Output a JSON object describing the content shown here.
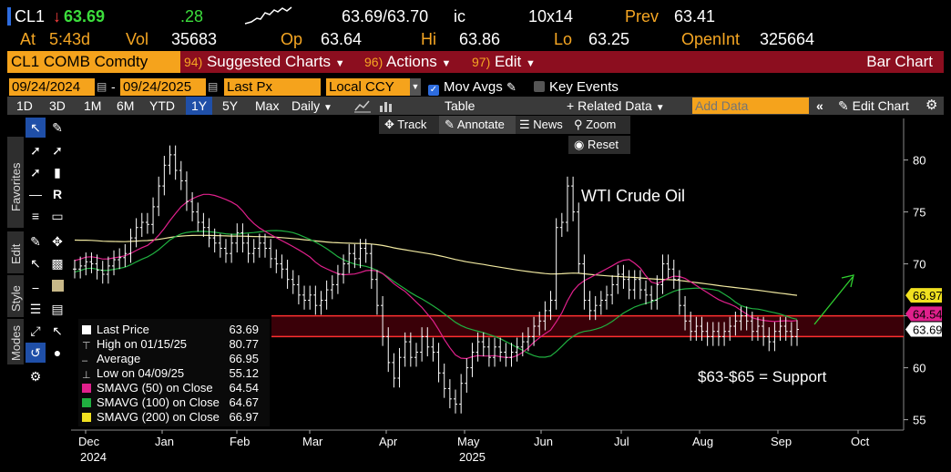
{
  "header": {
    "ticker": "CL1",
    "arrow": "↓",
    "last": "63.69",
    "change": ".28",
    "bid_ask": "63.69/63.70",
    "bid_ask_suffix": "ic",
    "size": "10x14",
    "prev_label": "Prev",
    "prev_value": "63.41",
    "at_label": "At",
    "at_time": "5:43d",
    "vol_label": "Vol",
    "vol_value": "35683",
    "op_label": "Op",
    "op_value": "63.64",
    "hi_label": "Hi",
    "hi_value": "63.86",
    "lo_label": "Lo",
    "lo_value": "63.25",
    "openint_label": "OpenInt",
    "openint_value": "325664"
  },
  "menubar": {
    "security": "CL1 COMB Comdty",
    "suggested_num": "94)",
    "suggested": "Suggested Charts",
    "actions_num": "96)",
    "actions": "Actions",
    "edit_num": "97)",
    "edit": "Edit",
    "chart_type": "Bar Chart"
  },
  "controls": {
    "start_date": "09/24/2024",
    "end_date": "09/24/2025",
    "price_field": "Last Px",
    "currency": "Local CCY",
    "mov_avgs": "Mov Avgs",
    "key_events": "Key Events"
  },
  "toolbar": {
    "periods": [
      "1D",
      "3D",
      "1M",
      "6M",
      "YTD",
      "1Y",
      "5Y",
      "Max"
    ],
    "selected_period": "1Y",
    "frequency": "Daily",
    "table": "Table",
    "related_data": "Related Data",
    "add_data_placeholder": "Add Data",
    "edit_chart": "Edit Chart"
  },
  "chart_popup": {
    "track": "Track",
    "annotate": "Annotate",
    "news": "News",
    "zoom": "Zoom",
    "reset": "Reset"
  },
  "side_tabs": {
    "favorites": "Favorites",
    "edit": "Edit",
    "style": "Style",
    "modes": "Modes"
  },
  "legend": {
    "rows": [
      {
        "label": "Last Price",
        "value": "63.69",
        "color": "#ffffff"
      },
      {
        "label": "High on 01/15/25",
        "value": "80.77",
        "color": ""
      },
      {
        "label": "Average",
        "value": "66.95",
        "color": ""
      },
      {
        "label": "Low on 04/09/25",
        "value": "55.12",
        "color": ""
      },
      {
        "label": "SMAVG (50)  on Close",
        "value": "64.54",
        "color": "#e0208c"
      },
      {
        "label": "SMAVG (100)  on Close",
        "value": "64.67",
        "color": "#20b040"
      },
      {
        "label": "SMAVG (200)  on Close",
        "value": "66.97",
        "color": "#f0e020"
      }
    ]
  },
  "chart_data": {
    "type": "bar",
    "ylim": [
      54,
      84
    ],
    "yticks": [
      55,
      60,
      65,
      70,
      75,
      80
    ],
    "x_labels": [
      {
        "label": "Dec",
        "sub": "2024"
      },
      {
        "label": "Jan",
        "sub": ""
      },
      {
        "label": "Feb",
        "sub": ""
      },
      {
        "label": "Mar",
        "sub": ""
      },
      {
        "label": "Apr",
        "sub": ""
      },
      {
        "label": "May",
        "sub": "2025"
      },
      {
        "label": "Jun",
        "sub": ""
      },
      {
        "label": "Jul",
        "sub": ""
      },
      {
        "label": "Aug",
        "sub": ""
      },
      {
        "label": "Sep",
        "sub": ""
      },
      {
        "label": "Oct",
        "sub": ""
      }
    ],
    "price_bars_close": [
      69.5,
      69.8,
      70.2,
      70.0,
      69.4,
      69.0,
      69.8,
      70.4,
      70.6,
      71.0,
      72.5,
      73.5,
      74.0,
      73.8,
      75.5,
      77.5,
      79.5,
      80.5,
      79.0,
      78.0,
      76.0,
      75.0,
      74.0,
      73.5,
      72.5,
      72.0,
      71.5,
      71.0,
      72.0,
      73.0,
      72.0,
      71.0,
      71.5,
      72.0,
      71.5,
      70.5,
      70.0,
      69.5,
      68.5,
      68.0,
      67.0,
      66.5,
      67.0,
      66.0,
      66.5,
      67.5,
      68.0,
      69.0,
      70.0,
      71.0,
      70.5,
      71.5,
      71.0,
      68.5,
      66.0,
      63.0,
      60.5,
      59.0,
      61.0,
      62.5,
      61.0,
      61.5,
      63.0,
      62.0,
      61.5,
      59.5,
      58.0,
      57.0,
      56.5,
      58.5,
      60.0,
      61.5,
      62.5,
      62.0,
      61.0,
      62.0,
      61.5,
      61.0,
      61.5,
      62.0,
      62.5,
      63.0,
      64.0,
      64.5,
      65.5,
      66.5,
      73.5,
      74.0,
      77.5,
      75.0,
      70.0,
      66.5,
      65.5,
      66.0,
      66.5,
      67.0,
      68.0,
      69.0,
      68.5,
      67.5,
      68.5,
      67.5,
      67.0,
      66.5,
      68.0,
      70.0,
      69.5,
      68.5,
      66.0,
      64.5,
      63.5,
      64.0,
      63.5,
      63.0,
      63.5,
      63.0,
      63.5,
      64.0,
      64.5,
      65.0,
      64.5,
      63.5,
      64.0,
      63.0,
      62.5,
      63.5,
      64.0,
      63.5,
      63.0,
      63.69
    ],
    "high": 80.77,
    "average": 66.95,
    "low": 55.12,
    "sma50_last": 64.54,
    "sma100_last": 64.67,
    "sma200_last": 66.97,
    "support_low": 63,
    "support_high": 65,
    "last": 63.69,
    "annotations": {
      "title_text": "WTI Crude Oil",
      "support_text": "$63-$65 = Support"
    },
    "price_tags": [
      {
        "value": "66.97",
        "color": "#f0e020"
      },
      {
        "value": "64.54",
        "color": "#e0208c"
      },
      {
        "value": "63.69",
        "color": "#ffffff"
      }
    ],
    "colors": {
      "bars": "#ffffff",
      "sma50": "#e0208c",
      "sma100": "#20b040",
      "sma200": "#f0e8a0",
      "support_band": "#3a0008",
      "support_line": "#ff3030",
      "arrow": "#30d030"
    }
  }
}
